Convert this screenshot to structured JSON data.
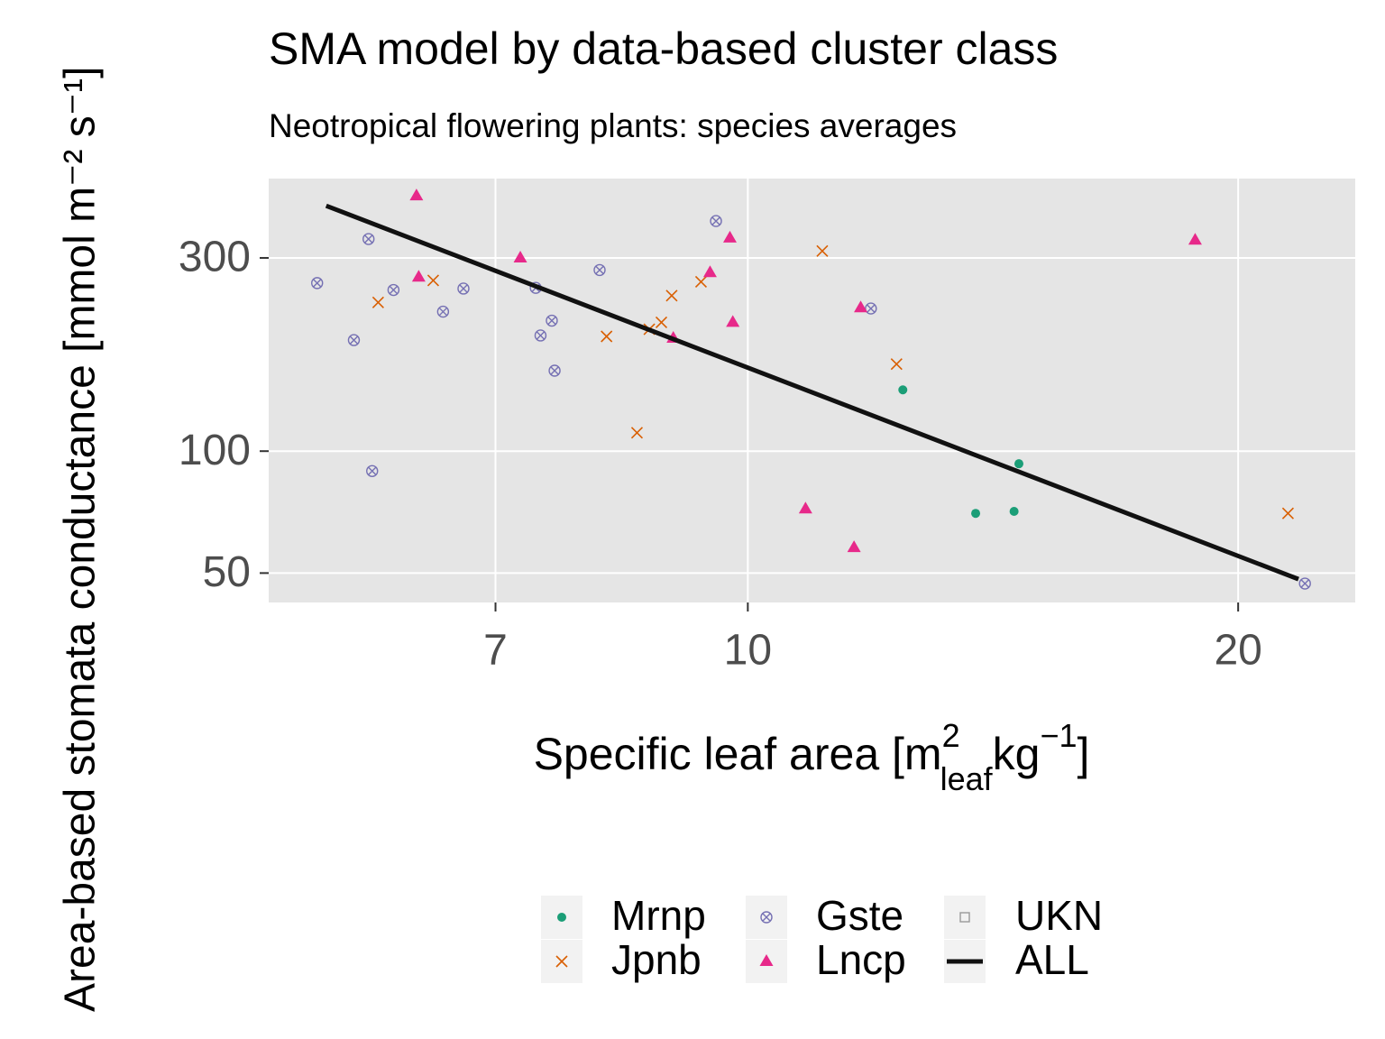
{
  "chart_data": {
    "type": "scatter",
    "title": "SMA model by data-based cluster class",
    "subtitle": "Neotropical flowering plants: species averages",
    "xlabel_parts": [
      "Specific leaf area [m",
      "2",
      "leaf",
      "kg",
      "−1",
      "]"
    ],
    "ylabel": "Area-based stomata conductance [mmol m⁻² s⁻¹]",
    "xlog": true,
    "ylog": true,
    "grid": true,
    "legend": "bottom",
    "xlim": [
      5.08,
      23.6
    ],
    "ylim": [
      42.3,
      471
    ],
    "xticks": [
      7,
      10,
      20
    ],
    "yticks": [
      50,
      100,
      300
    ],
    "series": [
      {
        "name": "Mrnp",
        "color": "#1b9e77",
        "shape": "circle",
        "x": [
          12.45,
          14.67,
          13.8,
          14.57
        ],
        "values": [
          141.7,
          93.1,
          70.2,
          71.0
        ]
      },
      {
        "name": "Jpnb",
        "color": "#d95f02",
        "shape": "cross",
        "x": [
          5.93,
          6.41,
          8.19,
          8.55,
          8.7,
          8.85,
          8.98,
          9.36,
          11.11,
          12.34,
          21.46
        ],
        "values": [
          233,
          264,
          192,
          111,
          200,
          208,
          242,
          262,
          312,
          164,
          70.2
        ]
      },
      {
        "name": "Gste",
        "color": "#7570b3",
        "shape": "circle-cross",
        "x": [
          5.44,
          5.73,
          5.85,
          5.88,
          6.06,
          6.5,
          6.69,
          7.41,
          7.46,
          7.58,
          7.61,
          8.11,
          9.56,
          11.9,
          21.98
        ],
        "values": [
          260,
          188,
          334,
          89.3,
          250,
          221,
          252,
          253,
          193,
          210,
          158,
          280,
          370,
          225,
          47.1
        ]
      },
      {
        "name": "Lncp",
        "color": "#e7298a",
        "shape": "triangle",
        "x": [
          6.26,
          6.28,
          7.25,
          9.0,
          9.48,
          9.75,
          9.79,
          10.85,
          11.62,
          11.73,
          18.82
        ],
        "values": [
          427,
          269,
          300,
          190,
          276,
          336,
          208,
          72,
          57.8,
          226,
          332
        ]
      },
      {
        "name": "UKN",
        "color": "#999999",
        "shape": "square",
        "x": [],
        "values": []
      },
      {
        "name": "ALL",
        "color": "#111111",
        "shape": "line",
        "x": [
          5.51,
          21.78
        ],
        "values": [
          403.5,
          48.3
        ]
      }
    ]
  }
}
